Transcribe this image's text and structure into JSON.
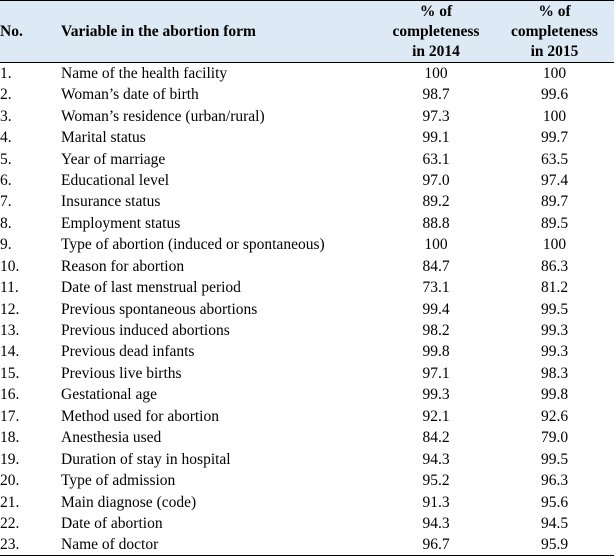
{
  "table": {
    "headers": {
      "no": "No.",
      "variable": "Variable in the abortion form",
      "y2014": [
        "% of",
        "completeness",
        "in 2014"
      ],
      "y2015": [
        "% of",
        "completeness",
        "in 2015"
      ]
    },
    "rows": [
      {
        "no": "1.",
        "variable": "Name of the health facility",
        "y2014": "100",
        "y2015": "100"
      },
      {
        "no": "2.",
        "variable": "Woman’s date of birth",
        "y2014": "98.7",
        "y2015": "99.6"
      },
      {
        "no": "3.",
        "variable": "Woman’s residence (urban/rural)",
        "y2014": "97.3",
        "y2015": "100"
      },
      {
        "no": "4.",
        "variable": "Marital status",
        "y2014": "99.1",
        "y2015": "99.7"
      },
      {
        "no": "5.",
        "variable": "Year of marriage",
        "y2014": "63.1",
        "y2015": "63.5"
      },
      {
        "no": "6.",
        "variable": "Educational level",
        "y2014": "97.0",
        "y2015": "97.4"
      },
      {
        "no": "7.",
        "variable": "Insurance status",
        "y2014": "89.2",
        "y2015": "89.7"
      },
      {
        "no": "8.",
        "variable": "Employment status",
        "y2014": "88.8",
        "y2015": "89.5"
      },
      {
        "no": "9.",
        "variable": "Type of abortion (induced or spontaneous)",
        "y2014": "100",
        "y2015": "100"
      },
      {
        "no": "10.",
        "variable": "Reason for abortion",
        "y2014": "84.7",
        "y2015": "86.3"
      },
      {
        "no": "11.",
        "variable": "Date of last menstrual period",
        "y2014": "73.1",
        "y2015": "81.2"
      },
      {
        "no": "12.",
        "variable": "Previous spontaneous abortions",
        "y2014": "99.4",
        "y2015": "99.5"
      },
      {
        "no": "13.",
        "variable": "Previous induced abortions",
        "y2014": "98.2",
        "y2015": "99.3"
      },
      {
        "no": "14.",
        "variable": "Previous dead infants",
        "y2014": "99.8",
        "y2015": "99.3"
      },
      {
        "no": "15.",
        "variable": "Previous live births",
        "y2014": "97.1",
        "y2015": "98.3"
      },
      {
        "no": "16.",
        "variable": "Gestational age",
        "y2014": "99.3",
        "y2015": "99.8"
      },
      {
        "no": "17.",
        "variable": "Method used for abortion",
        "y2014": "92.1",
        "y2015": "92.6"
      },
      {
        "no": "18.",
        "variable": "Anesthesia used",
        "y2014": "84.2",
        "y2015": "79.0"
      },
      {
        "no": "19.",
        "variable": "Duration of stay in hospital",
        "y2014": "94.3",
        "y2015": "99.5"
      },
      {
        "no": "20.",
        "variable": "Type of admission",
        "y2014": "95.2",
        "y2015": "96.3"
      },
      {
        "no": "21.",
        "variable": "Main diagnose (code)",
        "y2014": "91.3",
        "y2015": "95.6"
      },
      {
        "no": "22.",
        "variable": "Date of abortion",
        "y2014": "94.3",
        "y2015": "94.5"
      },
      {
        "no": "23.",
        "variable": "Name of doctor",
        "y2014": "96.7",
        "y2015": "95.9"
      }
    ]
  }
}
